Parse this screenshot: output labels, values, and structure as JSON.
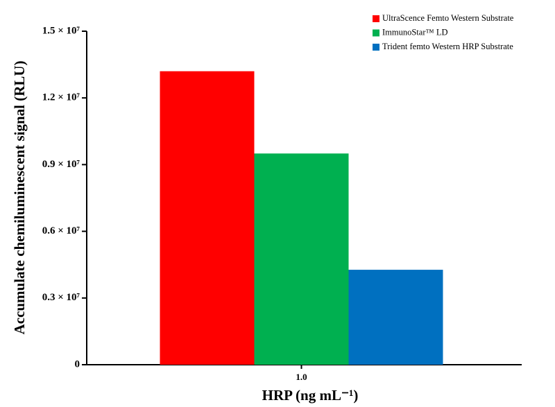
{
  "chart_data": {
    "type": "bar",
    "x_label": "HRP (ng mL⁻¹)",
    "y_label": "Accumulate chemiluminescent signal (RLU)",
    "categories": [
      "1.0"
    ],
    "series": [
      {
        "name": "UltraScence Femto Western Substrate",
        "color": "#ff0000",
        "values": [
          13200000
        ]
      },
      {
        "name": "ImmunoStar™ LD",
        "color": "#00b050",
        "values": [
          9500000
        ]
      },
      {
        "name": "Trident femto Western HRP Substrate",
        "color": "#0070c0",
        "values": [
          4270000
        ]
      }
    ],
    "ylim": [
      0,
      15000000
    ],
    "yticks": [
      0,
      {
        "value": 3000000,
        "label": "0.3 × 10⁷"
      },
      {
        "value": 6000000,
        "label": "0.6 × 10⁷"
      },
      {
        "value": 9000000,
        "label": "0.9 × 10⁷"
      },
      {
        "value": 12000000,
        "label": "1.2 × 10⁷"
      },
      {
        "value": 15000000,
        "label": "1.5 × 10⁷"
      }
    ],
    "legend": "upper right",
    "grid": false
  }
}
